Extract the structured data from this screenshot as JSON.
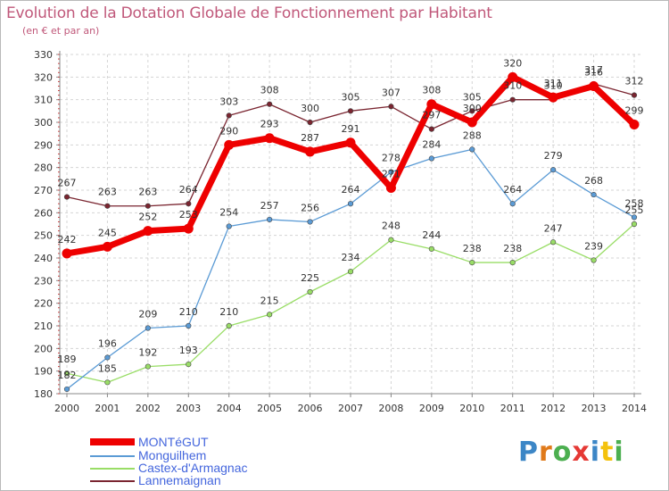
{
  "title": "Evolution de la Dotation Globale de Fonctionnement par Habitant",
  "subtitle": "(en € et par an)",
  "brand": "Proxiti",
  "chart_data": {
    "type": "line",
    "title": "Evolution de la Dotation Globale de Fonctionnement par Habitant",
    "ylabel": "(en € et par an)",
    "xlabel": "",
    "ylim": [
      180,
      330
    ],
    "yticks": [
      180,
      190,
      200,
      210,
      220,
      230,
      240,
      250,
      260,
      270,
      280,
      290,
      300,
      310,
      320,
      330
    ],
    "grid": true,
    "legend_position": "bottom-left",
    "categories": [
      "2000",
      "2001",
      "2002",
      "2003",
      "2004",
      "2005",
      "2006",
      "2007",
      "2008",
      "2009",
      "2010",
      "2011",
      "2012",
      "2013",
      "2014"
    ],
    "series": [
      {
        "name": "MONTéGUT",
        "color": "#ee0000",
        "values": [
          242,
          245,
          252,
          253,
          290,
          293,
          287,
          291,
          271,
          308,
          300,
          320,
          311,
          316,
          299
        ]
      },
      {
        "name": "Monguilhem",
        "color": "#5b9bd5",
        "values": [
          182,
          196,
          209,
          210,
          254,
          257,
          256,
          264,
          278,
          284,
          288,
          264,
          279,
          268,
          258
        ]
      },
      {
        "name": "Castex-d'Armagnac",
        "color": "#99dd66",
        "values": [
          189,
          185,
          192,
          193,
          210,
          215,
          225,
          234,
          248,
          244,
          238,
          238,
          247,
          239,
          255
        ]
      },
      {
        "name": "Lannemaignan",
        "color": "#7a2530",
        "values": [
          267,
          263,
          263,
          264,
          303,
          308,
          300,
          305,
          307,
          297,
          305,
          310,
          310,
          317,
          312
        ]
      }
    ]
  }
}
